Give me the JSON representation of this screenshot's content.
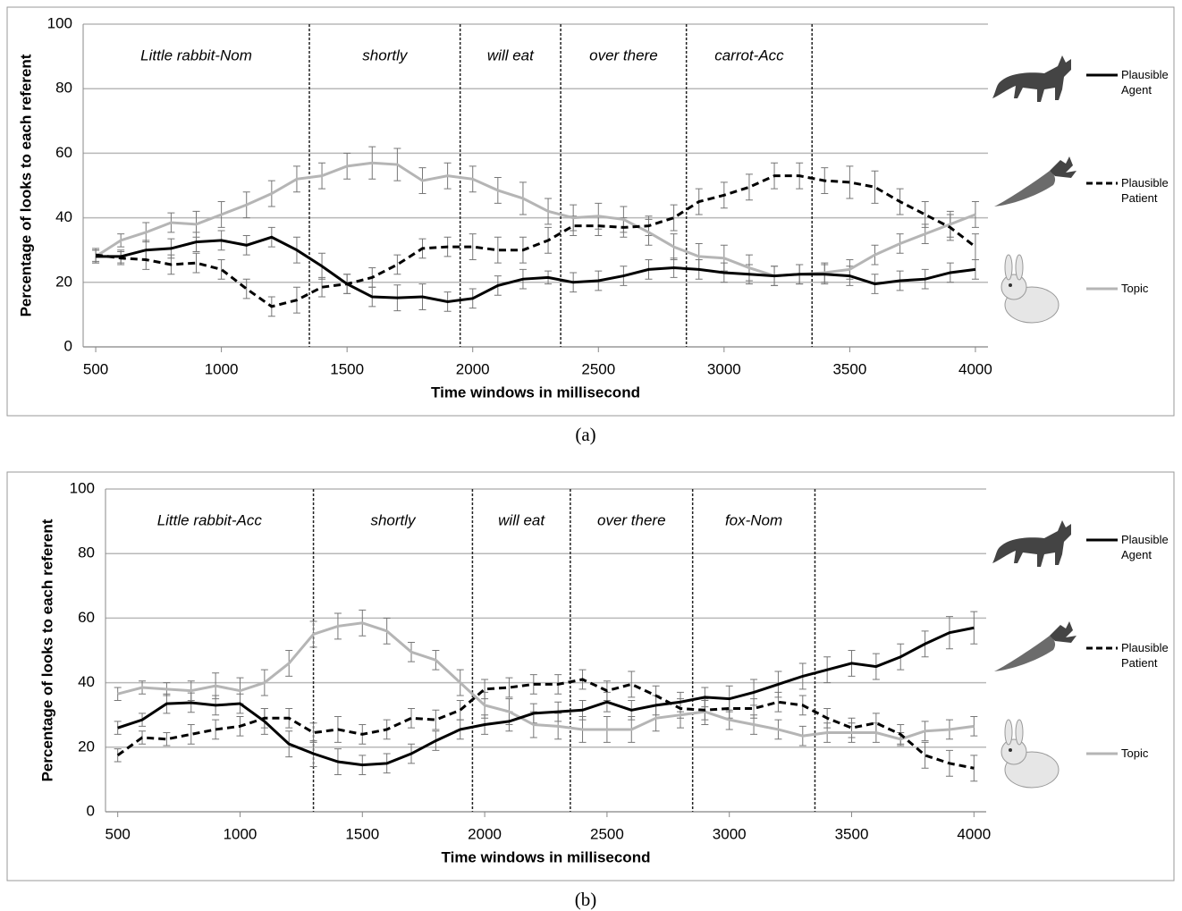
{
  "chart_data": [
    {
      "type": "line",
      "caption": "(a)",
      "x_label": "Time windows in millisecond",
      "y_label": "Percentage of looks to each referent",
      "xlim": [
        450,
        4050
      ],
      "xticks": [
        500,
        1000,
        1500,
        2000,
        2500,
        3000,
        3500,
        4000
      ],
      "ylim": [
        0,
        100
      ],
      "yticks": [
        0,
        20,
        40,
        60,
        80,
        100
      ],
      "grid": true,
      "phrases": [
        "Little rabbit-Nom",
        "shortly",
        "will eat",
        "over there",
        "carrot-Acc"
      ],
      "boundaries": [
        1350,
        1950,
        2350,
        2850,
        3350
      ],
      "x": [
        500,
        600,
        700,
        800,
        900,
        1000,
        1100,
        1200,
        1300,
        1400,
        1500,
        1600,
        1700,
        1800,
        1900,
        2000,
        2100,
        2200,
        2300,
        2400,
        2500,
        2600,
        2700,
        2800,
        2900,
        3000,
        3100,
        3200,
        3300,
        3400,
        3500,
        3600,
        3700,
        3800,
        3900,
        4000
      ],
      "series": [
        {
          "name": "Plausible Agent",
          "color": "#000000",
          "dash": false,
          "values": [
            28,
            28,
            30,
            30.5,
            32.5,
            33,
            31.5,
            34,
            30,
            25,
            19.5,
            15.5,
            15.2,
            15.5,
            14,
            15,
            19,
            21,
            21.5,
            20,
            20.5,
            22,
            24,
            24.5,
            24,
            23,
            22.5,
            22,
            22.5,
            22.5,
            22,
            19.5,
            20.5,
            21,
            23,
            24
          ],
          "errors": [
            2,
            2,
            3,
            3,
            3,
            3,
            3,
            3,
            4,
            4,
            3,
            3,
            4,
            4,
            3,
            3,
            3,
            3,
            2,
            3,
            3,
            3,
            3,
            3,
            3,
            3,
            3,
            3,
            3,
            3,
            3,
            3,
            3,
            3,
            3,
            3
          ]
        },
        {
          "name": "Plausible Patient",
          "color": "#000000",
          "dash": true,
          "values": [
            28.5,
            27.5,
            27,
            25.5,
            26,
            24,
            18,
            12.5,
            14.5,
            18.5,
            19.5,
            21.5,
            25.5,
            30.5,
            31,
            31,
            30,
            30,
            33,
            37.5,
            37.5,
            37,
            37.5,
            40,
            45,
            47,
            49.5,
            53,
            53,
            51.5,
            51,
            49.5,
            45,
            41,
            37,
            31
          ],
          "errors": [
            2,
            2,
            3,
            3,
            3,
            3,
            3,
            3,
            4,
            3,
            3,
            3,
            3,
            3,
            3,
            4,
            4,
            4,
            4,
            3,
            3,
            3,
            3,
            4,
            4,
            4,
            4,
            4,
            4,
            4,
            5,
            5,
            4,
            4,
            4,
            4
          ]
        },
        {
          "name": "Topic",
          "color": "#b5b5b5",
          "dash": false,
          "values": [
            28,
            33,
            35.5,
            38.5,
            38,
            41,
            44,
            47.5,
            52,
            53,
            56,
            57,
            56.5,
            51.5,
            53,
            52,
            48.5,
            46,
            42,
            40,
            40.5,
            39.5,
            35.5,
            31,
            28,
            27.5,
            24.5,
            22,
            22.5,
            23,
            24,
            28.5,
            32,
            35,
            38,
            41
          ],
          "errors": [
            2,
            2,
            3,
            3,
            4,
            4,
            4,
            4,
            4,
            4,
            4,
            5,
            5,
            4,
            4,
            4,
            4,
            5,
            4,
            4,
            4,
            4,
            4,
            4,
            4,
            4,
            4,
            3,
            3,
            3,
            3,
            3,
            3,
            3,
            4,
            4
          ]
        }
      ]
    },
    {
      "type": "line",
      "caption": "(b)",
      "x_label": "Time windows in millisecond",
      "y_label": "Percentage of looks to each referent",
      "xlim": [
        450,
        4050
      ],
      "xticks": [
        500,
        1000,
        1500,
        2000,
        2500,
        3000,
        3500,
        4000
      ],
      "ylim": [
        0,
        100
      ],
      "yticks": [
        0,
        20,
        40,
        60,
        80,
        100
      ],
      "grid": true,
      "phrases": [
        "Little rabbit-Acc",
        "shortly",
        "will eat",
        "over there",
        "fox-Nom"
      ],
      "boundaries": [
        1300,
        1950,
        2350,
        2850,
        3350
      ],
      "x": [
        500,
        600,
        700,
        800,
        900,
        1000,
        1100,
        1200,
        1300,
        1400,
        1500,
        1600,
        1700,
        1800,
        1900,
        2000,
        2100,
        2200,
        2300,
        2400,
        2500,
        2600,
        2700,
        2800,
        2900,
        3000,
        3100,
        3200,
        3300,
        3400,
        3500,
        3600,
        3700,
        3800,
        3900,
        4000
      ],
      "series": [
        {
          "name": "Plausible Agent",
          "color": "#000000",
          "dash": false,
          "values": [
            26,
            28.5,
            33.5,
            33.8,
            33,
            33.5,
            28,
            21,
            18,
            15.5,
            14.5,
            15,
            18,
            22,
            25.5,
            27,
            28,
            30.5,
            31,
            31.5,
            34,
            31.5,
            33,
            34,
            35.5,
            35,
            37,
            39.5,
            42,
            44,
            46,
            45,
            48,
            52,
            55.5,
            57
          ],
          "errors": [
            2,
            2,
            3,
            3,
            3,
            3,
            4,
            4,
            4,
            4,
            3,
            3,
            3,
            3,
            3,
            3,
            3,
            3,
            3,
            3,
            3,
            3,
            3,
            3,
            3,
            4,
            4,
            4,
            4,
            4,
            4,
            4,
            4,
            4,
            5,
            5
          ]
        },
        {
          "name": "Plausible Patient",
          "color": "#000000",
          "dash": true,
          "values": [
            17.5,
            23,
            22.5,
            24,
            25.5,
            26.5,
            29,
            29,
            24.5,
            25.5,
            24,
            25.5,
            29,
            28.5,
            31.5,
            38,
            38.5,
            39.5,
            39.5,
            41,
            37.5,
            39.5,
            36,
            32,
            31.5,
            32,
            32,
            34,
            33,
            29,
            26,
            27.5,
            24,
            17.5,
            15,
            13.5
          ],
          "errors": [
            2,
            2,
            2,
            3,
            3,
            3,
            3,
            3,
            3,
            4,
            3,
            3,
            3,
            3,
            3,
            3,
            3,
            3,
            3,
            3,
            3,
            4,
            3,
            3,
            3,
            3,
            3,
            3,
            3,
            3,
            3,
            3,
            3,
            4,
            4,
            4
          ]
        },
        {
          "name": "Topic",
          "color": "#b5b5b5",
          "dash": false,
          "values": [
            36.5,
            38.5,
            38,
            37.5,
            39,
            37.5,
            40,
            46,
            55,
            57.5,
            58.5,
            56,
            49.5,
            47,
            40,
            33,
            31,
            27,
            26.5,
            25.5,
            25.5,
            25.5,
            29,
            30,
            31,
            28.5,
            27,
            25.5,
            23.5,
            24.5,
            24.5,
            24.5,
            22.5,
            25,
            25.5,
            26.5
          ],
          "errors": [
            2,
            2,
            2,
            3,
            4,
            4,
            4,
            4,
            4,
            4,
            4,
            4,
            3,
            3,
            4,
            4,
            4,
            4,
            4,
            4,
            4,
            4,
            4,
            4,
            4,
            3,
            3,
            3,
            3,
            3,
            3,
            3,
            2,
            3,
            3,
            3
          ]
        }
      ]
    }
  ]
}
